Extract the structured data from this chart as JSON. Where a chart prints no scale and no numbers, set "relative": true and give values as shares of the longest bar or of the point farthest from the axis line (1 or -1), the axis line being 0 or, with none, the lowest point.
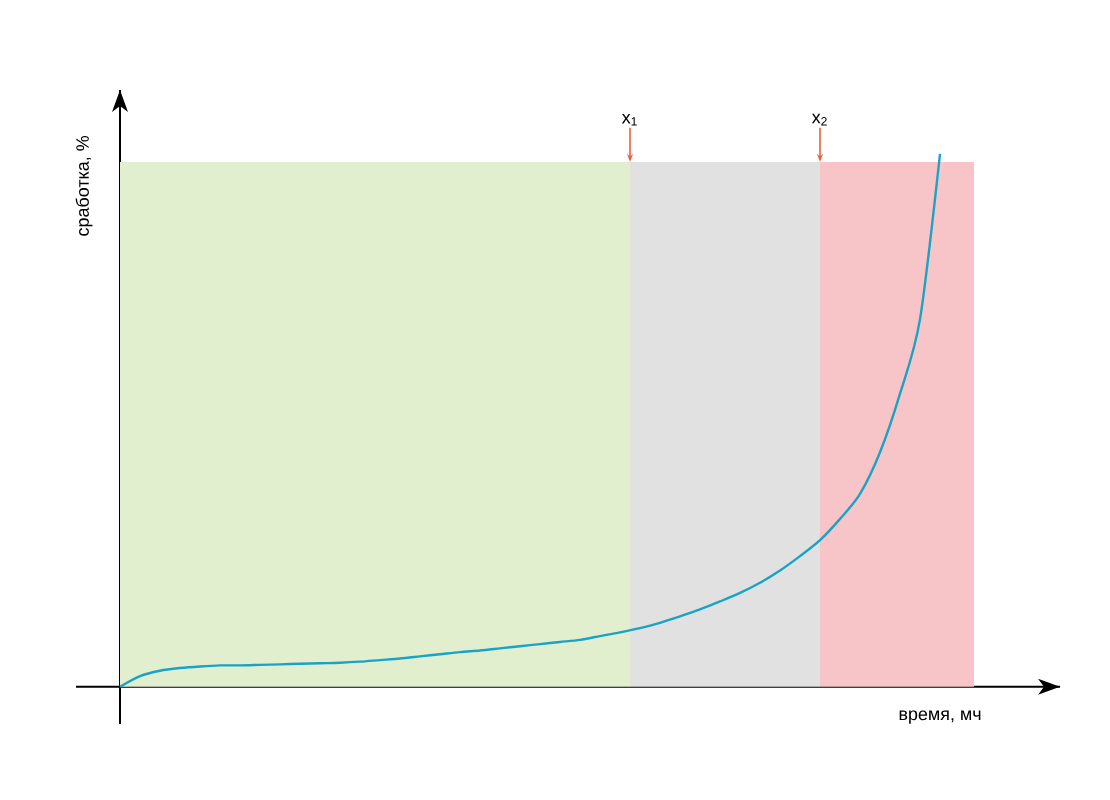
{
  "chart_data": {
    "type": "line",
    "xlabel": "время, мч",
    "ylabel": "сработка, %",
    "relative": true,
    "categories": [
      null,
      null,
      null,
      null,
      null,
      null,
      null,
      null,
      null,
      null,
      null,
      null,
      null,
      null,
      null,
      null,
      null,
      null,
      null,
      null,
      null,
      null,
      null,
      null,
      null,
      null,
      null,
      null,
      null,
      null,
      null,
      null,
      null,
      null,
      null,
      null,
      null,
      null,
      null,
      null,
      null,
      null
    ],
    "series": [
      {
        "color": "#1aa3c6",
        "values": [
          0,
          0.02,
          0.03,
          0.035,
          0.038,
          0.04,
          0.04,
          0.041,
          0.042,
          0.043,
          0.044,
          0.045,
          0.047,
          0.05,
          0.053,
          0.057,
          0.061,
          0.065,
          0.068,
          0.072,
          0.076,
          0.08,
          0.084,
          0.088,
          0.095,
          0.102,
          0.11,
          0.12,
          0.132,
          0.145,
          0.16,
          0.176,
          0.195,
          0.218,
          0.245,
          0.275,
          0.315,
          0.362,
          0.44,
          0.55,
          0.69,
          1
        ]
      }
    ],
    "annotations": [
      "x$_{1}$",
      "x$_{2}$"
    ],
    "marker": "none",
    "line_style": "solid"
  }
}
